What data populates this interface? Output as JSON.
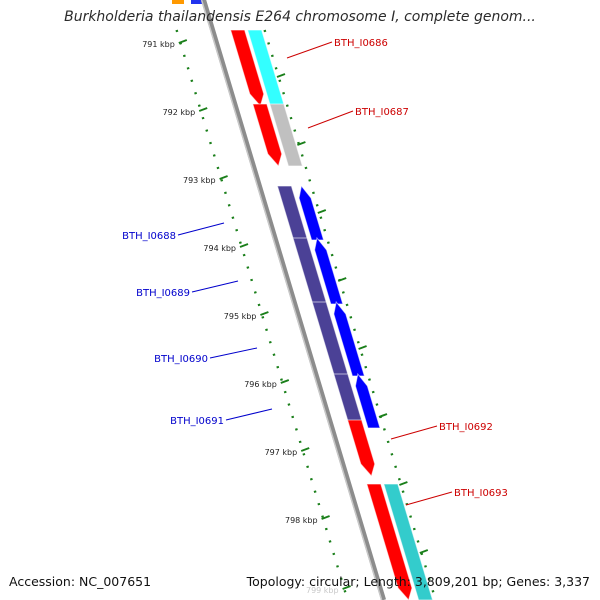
{
  "title": "Burkholderia thailandensis E264 chromosome I, complete genom...",
  "accession_text": "Accession: NC_007651",
  "summary_text": "Topology: circular; Length: 3,809,201 bp; Genes: 3,337",
  "ticks": [
    "791 kbp",
    "792 kbp",
    "793 kbp",
    "794 kbp",
    "795 kbp",
    "796 kbp",
    "797 kbp",
    "798 kbp",
    "799 kbp"
  ],
  "genes": [
    {
      "name": "BTH_I0686",
      "strand": "forward",
      "cds_color": "#ff0000",
      "feature_color": "#33ffff",
      "label_color": "#cc0000"
    },
    {
      "name": "BTH_I0687",
      "strand": "forward",
      "cds_color": "#ff0000",
      "feature_color": "#c0c0c0",
      "label_color": "#cc0000"
    },
    {
      "name": "BTH_I0688",
      "strand": "reverse",
      "cds_color": "#0000ff",
      "feature_color": "#4b4196",
      "label_color": "#0000cc"
    },
    {
      "name": "BTH_I0689",
      "strand": "reverse",
      "cds_color": "#0000ff",
      "feature_color": "#4b4196",
      "label_color": "#0000cc"
    },
    {
      "name": "BTH_I0690",
      "strand": "reverse",
      "cds_color": "#0000ff",
      "feature_color": "#4b4196",
      "label_color": "#0000cc"
    },
    {
      "name": "BTH_I0691",
      "strand": "reverse",
      "cds_color": "#0000ff",
      "feature_color": "#4b4196",
      "label_color": "#0000cc"
    },
    {
      "name": "BTH_I0692",
      "strand": "forward",
      "cds_color": "#ff0000",
      "feature_color": "",
      "label_color": "#cc0000"
    },
    {
      "name": "BTH_I0693",
      "strand": "forward",
      "cds_color": "#ff0000",
      "feature_color": "#33cccc",
      "label_color": "#cc0000"
    }
  ],
  "colors": {
    "backbone": "#8c8c8c",
    "tick_dots": "#1a7f1a",
    "tick_label": "#222222"
  }
}
